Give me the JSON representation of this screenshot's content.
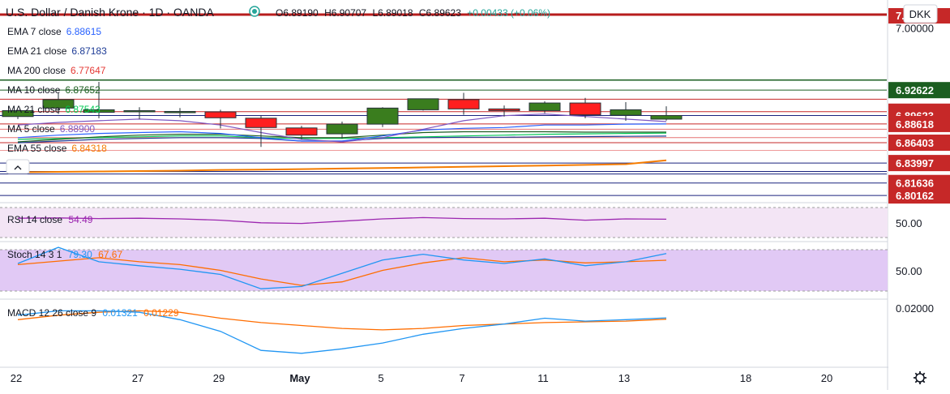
{
  "header": {
    "symbol": "U.S. Dollar / Danish Krone",
    "interval": "1D",
    "exchange": "OANDA",
    "open": "O6.89190",
    "high": "H6.90707",
    "low": "L6.89018",
    "close": "C6.89623",
    "change": "+0.00433 (+0.06%)",
    "currency": "DKK"
  },
  "legend": [
    {
      "label": "EMA 7 close",
      "value": "6.88615",
      "color": "#2962ff",
      "bg": false
    },
    {
      "label": "EMA 21 close",
      "value": "6.87183",
      "color": "#1e3c96",
      "bg": false
    },
    {
      "label": "MA 200 close",
      "value": "6.77647",
      "color": "#e53935",
      "bg": false
    },
    {
      "label": "MA 10 close",
      "value": "6.87652",
      "color": "#1b5e20",
      "bg": false
    },
    {
      "label": "MA 21 close",
      "value": "6.87543",
      "color": "#00c853",
      "bg": false
    },
    {
      "label": "MA 5 close",
      "value": "6.88900",
      "color": "#7e57c2",
      "bg": false
    },
    {
      "label": "EMA 55 close",
      "value": "6.84318",
      "color": "#f57c00",
      "bg": false
    }
  ],
  "price_axis": {
    "ticks": [
      "7.00000",
      "6.92622",
      "6.90074",
      "6.89623",
      "6.88618",
      "6.86403",
      "6.83997",
      "6.81636",
      "6.80162"
    ],
    "top_label": "7.00036",
    "current": "6.89623"
  },
  "panes": {
    "rsi": {
      "label": "RSI 14 close",
      "value": "54.49",
      "color": "#9c27b0",
      "tick": "50.00"
    },
    "stoch": {
      "label": "Stoch 14 3 1",
      "k": "79.30",
      "d": "67.67",
      "k_color": "#2196f3",
      "d_color": "#ff6d00",
      "tick": "50.00"
    },
    "macd": {
      "label": "MACD 12 26 close 9",
      "macd": "0.01321",
      "signal": "0.01229",
      "macd_color": "#2196f3",
      "signal_color": "#ff6d00",
      "tick": "0.02000"
    }
  },
  "date_axis": [
    "22",
    "27",
    "29",
    "May",
    "5",
    "7",
    "11",
    "13",
    "18",
    "20"
  ],
  "chart_data": {
    "type": "candlestick",
    "dates": [
      "Apr 22",
      "Apr 23",
      "Apr 24",
      "Apr 27",
      "Apr 28",
      "Apr 29",
      "Apr 30",
      "May 1",
      "May 4",
      "May 5",
      "May 6",
      "May 7",
      "May 8",
      "May 11",
      "May 12",
      "May 13",
      "May 14"
    ],
    "open": [
      6.895,
      6.905,
      6.9,
      6.901,
      6.9,
      6.9005,
      6.893,
      6.8815,
      6.8745,
      6.886,
      6.903,
      6.915,
      6.904,
      6.902,
      6.911,
      6.8965,
      6.8919
    ],
    "high": [
      6.902,
      6.923,
      6.936,
      6.906,
      6.905,
      6.903,
      6.896,
      6.884,
      6.889,
      6.906,
      6.915,
      6.923,
      6.908,
      6.913,
      6.917,
      6.912,
      6.9071
    ],
    "low": [
      6.892,
      6.898,
      6.893,
      6.892,
      6.894,
      6.881,
      6.859,
      6.868,
      6.869,
      6.8825,
      6.902,
      6.897,
      6.895,
      6.899,
      6.893,
      6.89,
      6.8902
    ],
    "close": [
      6.902,
      6.915,
      6.903,
      6.902,
      6.901,
      6.8935,
      6.882,
      6.873,
      6.886,
      6.905,
      6.916,
      6.904,
      6.902,
      6.911,
      6.897,
      6.903,
      6.8962
    ],
    "ylim": [
      6.795,
      7.006
    ],
    "price_lines": [
      6.9381,
      6.92622,
      6.9155,
      6.90074,
      6.89623,
      6.88618,
      6.88,
      6.87,
      6.86403,
      6.855,
      6.83997,
      6.83,
      6.827,
      6.81636,
      6.80162
    ],
    "series": [
      {
        "name": "MA 200 close",
        "color": "#e53935",
        "values": [
          6.76,
          6.761,
          6.762,
          6.763,
          6.764,
          6.765,
          6.766,
          6.767,
          6.768,
          6.769,
          6.77,
          6.771,
          6.772,
          6.773,
          6.774,
          6.7755,
          6.7765
        ]
      },
      {
        "name": "EMA 55 close",
        "color": "#f57c00",
        "values": [
          6.829,
          6.8295,
          6.83,
          6.8305,
          6.831,
          6.8318,
          6.8322,
          6.8328,
          6.8335,
          6.834,
          6.8348,
          6.8355,
          6.8362,
          6.837,
          6.8378,
          6.8386,
          6.8432
        ]
      },
      {
        "name": "EMA 21 close",
        "color": "#1e3c96",
        "values": [
          6.864,
          6.866,
          6.868,
          6.869,
          6.87,
          6.87,
          6.869,
          6.866,
          6.866,
          6.869,
          6.87,
          6.8705,
          6.8705,
          6.871,
          6.8712,
          6.8715,
          6.8718
        ]
      },
      {
        "name": "MA 21 close",
        "color": "#00c853",
        "values": [
          6.868,
          6.869,
          6.87,
          6.871,
          6.872,
          6.872,
          6.87,
          6.869,
          6.869,
          6.87,
          6.871,
          6.872,
          6.873,
          6.874,
          6.8745,
          6.875,
          6.8754
        ]
      },
      {
        "name": "MA 10 close",
        "color": "#1b5e20",
        "values": [
          6.865,
          6.868,
          6.871,
          6.873,
          6.874,
          6.874,
          6.872,
          6.87,
          6.87,
          6.873,
          6.876,
          6.877,
          6.877,
          6.877,
          6.8765,
          6.8765,
          6.8765
        ]
      },
      {
        "name": "EMA 7 close",
        "color": "#2962ff",
        "values": [
          6.87,
          6.873,
          6.875,
          6.876,
          6.877,
          6.875,
          6.87,
          6.866,
          6.866,
          6.872,
          6.879,
          6.881,
          6.882,
          6.885,
          6.885,
          6.886,
          6.8862
        ]
      },
      {
        "name": "MA 5 close",
        "color": "#7e57c2",
        "values": [
          6.885,
          6.888,
          6.89,
          6.892,
          6.89,
          6.885,
          6.876,
          6.868,
          6.865,
          6.87,
          6.88,
          6.89,
          6.896,
          6.898,
          6.895,
          6.892,
          6.889
        ]
      }
    ],
    "rsi": {
      "ylim": [
        20,
        80
      ],
      "band": [
        30,
        70
      ],
      "values": [
        56.0,
        56.5,
        55.5,
        56.0,
        55.0,
        53.0,
        49.0,
        48.0,
        51.5,
        55.0,
        57.0,
        55.5,
        55.0,
        56.0,
        53.0,
        55.0,
        54.49
      ]
    },
    "stoch": {
      "ylim": [
        0,
        100
      ],
      "band": [
        20,
        80
      ],
      "k": [
        62,
        90,
        65,
        58,
        52,
        43,
        18,
        22,
        45,
        68,
        78,
        68,
        62,
        70,
        58,
        65,
        79.3
      ],
      "d": [
        60,
        66,
        72,
        65,
        60,
        50,
        35,
        24,
        30,
        50,
        63,
        72,
        65,
        68,
        63,
        65,
        67.67
      ]
    },
    "macd": {
      "ylim": [
        -0.02,
        0.026
      ],
      "macd": [
        0.015,
        0.018,
        0.018,
        0.017,
        0.012,
        0.004,
        -0.009,
        -0.011,
        -0.008,
        -0.004,
        0.002,
        0.006,
        0.009,
        0.013,
        0.011,
        0.012,
        0.01321
      ],
      "signal": [
        0.012,
        0.015,
        0.017,
        0.018,
        0.017,
        0.013,
        0.01,
        0.008,
        0.006,
        0.005,
        0.006,
        0.008,
        0.009,
        0.01,
        0.0105,
        0.011,
        0.01229
      ]
    }
  }
}
